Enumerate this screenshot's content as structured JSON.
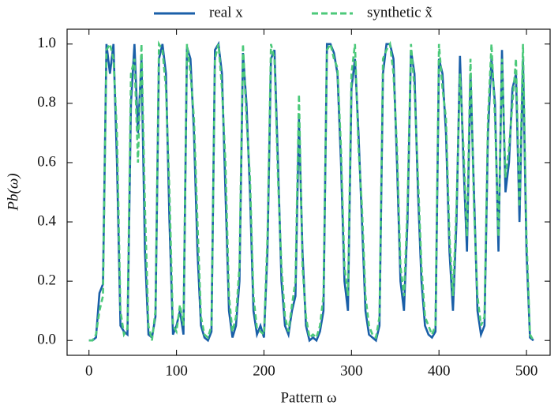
{
  "chart_data": {
    "type": "line",
    "x_label": "Pattern ω",
    "y_label": "Pb(ω)",
    "xlim": [
      -25,
      527
    ],
    "ylim": [
      -0.05,
      1.05
    ],
    "xticks": [
      0,
      100,
      200,
      300,
      400,
      500
    ],
    "yticks": [
      {
        "value": 0,
        "label": "0.0"
      },
      0.2,
      0.4,
      0.6,
      0.8,
      {
        "value": 1,
        "label": "1.0"
      }
    ],
    "grid": false,
    "legend": "top",
    "x": [
      0,
      4,
      8,
      12,
      16,
      20,
      24,
      28,
      32,
      36,
      40,
      44,
      48,
      52,
      56,
      60,
      64,
      68,
      72,
      76,
      80,
      84,
      88,
      92,
      96,
      100,
      104,
      108,
      112,
      116,
      120,
      124,
      128,
      132,
      136,
      140,
      144,
      148,
      152,
      156,
      160,
      164,
      168,
      172,
      176,
      180,
      184,
      188,
      192,
      196,
      200,
      204,
      208,
      212,
      216,
      220,
      224,
      228,
      232,
      236,
      240,
      244,
      248,
      252,
      256,
      260,
      264,
      268,
      272,
      276,
      280,
      284,
      288,
      292,
      296,
      300,
      304,
      308,
      312,
      316,
      320,
      324,
      328,
      332,
      336,
      340,
      344,
      348,
      352,
      356,
      360,
      364,
      368,
      372,
      376,
      380,
      384,
      388,
      392,
      396,
      400,
      404,
      408,
      412,
      416,
      420,
      424,
      428,
      432,
      436,
      440,
      444,
      448,
      452,
      456,
      460,
      464,
      468,
      472,
      476,
      480,
      484,
      488,
      492,
      496,
      500,
      504,
      508
    ],
    "series": [
      {
        "name": "real x",
        "color": "#1a5fa8",
        "linestyle": "solid",
        "values": [
          0,
          0,
          0.01,
          0.16,
          0.19,
          1.0,
          0.9,
          1.0,
          0.6,
          0.05,
          0.03,
          0.02,
          0.8,
          1.0,
          0.7,
          0.95,
          0.3,
          0.02,
          0.01,
          0.08,
          0.95,
          1.0,
          0.9,
          0.4,
          0.02,
          0.05,
          0.1,
          0.02,
          0.99,
          0.95,
          0.7,
          0.3,
          0.05,
          0.01,
          0.0,
          0.03,
          0.98,
          1.0,
          0.9,
          0.5,
          0.1,
          0.01,
          0.05,
          0.2,
          0.97,
          0.8,
          0.5,
          0.1,
          0.02,
          0.05,
          0.01,
          0.3,
          0.95,
          0.98,
          0.6,
          0.2,
          0.05,
          0.02,
          0.1,
          0.15,
          0.75,
          0.3,
          0.05,
          0.0,
          0.01,
          0.0,
          0.03,
          0.1,
          1.0,
          1.0,
          0.97,
          0.9,
          0.6,
          0.2,
          0.1,
          0.85,
          0.95,
          0.7,
          0.4,
          0.1,
          0.02,
          0.01,
          0.0,
          0.05,
          0.9,
          1.0,
          1.0,
          0.95,
          0.6,
          0.2,
          0.1,
          0.4,
          0.98,
          0.9,
          0.5,
          0.2,
          0.05,
          0.02,
          0.01,
          0.03,
          0.95,
          0.9,
          0.7,
          0.3,
          0.1,
          0.4,
          0.96,
          0.6,
          0.3,
          0.9,
          0.5,
          0.1,
          0.02,
          0.05,
          0.7,
          0.95,
          0.8,
          0.3,
          0.98,
          0.5,
          0.6,
          0.85,
          0.9,
          0.4,
          0.95,
          0.3,
          0.01,
          0.0
        ]
      },
      {
        "name": "synthetic x̃",
        "color": "#4cc97a",
        "linestyle": "dashed",
        "values": [
          0,
          0,
          0.02,
          0.1,
          0.15,
          0.98,
          1.0,
          0.95,
          0.7,
          0.1,
          0.02,
          0.04,
          0.9,
          0.95,
          0.6,
          1.0,
          0.45,
          0.05,
          0.0,
          0.1,
          1.0,
          0.98,
          0.85,
          0.5,
          0.05,
          0.03,
          0.12,
          0.05,
          1.0,
          0.9,
          0.75,
          0.4,
          0.08,
          0.02,
          0.01,
          0.05,
          0.95,
          1.0,
          0.85,
          0.6,
          0.15,
          0.03,
          0.08,
          0.25,
          1.0,
          0.75,
          0.55,
          0.15,
          0.04,
          0.03,
          0.02,
          0.35,
          1.0,
          0.95,
          0.55,
          0.25,
          0.08,
          0.03,
          0.12,
          0.2,
          0.83,
          0.25,
          0.08,
          0.01,
          0.02,
          0.01,
          0.05,
          0.15,
          0.98,
          1.0,
          0.95,
          0.92,
          0.65,
          0.25,
          0.15,
          0.9,
          1.0,
          0.65,
          0.45,
          0.15,
          0.05,
          0.02,
          0.01,
          0.08,
          0.95,
          0.98,
          1.0,
          0.9,
          0.65,
          0.25,
          0.15,
          0.45,
          1.0,
          0.85,
          0.55,
          0.25,
          0.08,
          0.05,
          0.02,
          0.05,
          1.0,
          0.85,
          0.75,
          0.35,
          0.15,
          0.45,
          0.9,
          0.65,
          0.35,
          0.95,
          0.45,
          0.15,
          0.05,
          0.08,
          0.75,
          1.0,
          0.75,
          0.35,
          0.95,
          0.55,
          0.65,
          0.8,
          0.95,
          0.45,
          1.0,
          0.35,
          0.02,
          0.0
        ]
      }
    ]
  }
}
